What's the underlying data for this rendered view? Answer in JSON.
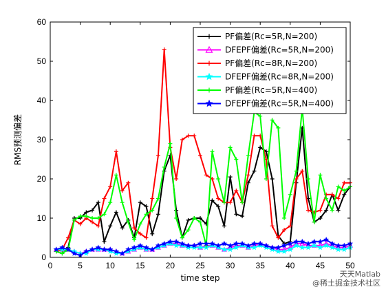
{
  "chart_data": {
    "type": "line",
    "xlabel": "time step",
    "ylabel": "RMS预测偏差",
    "xlim": [
      0,
      50
    ],
    "ylim": [
      0,
      60
    ],
    "xticks": [
      0,
      5,
      10,
      15,
      20,
      25,
      30,
      35,
      40,
      45,
      50
    ],
    "yticks": [
      0,
      10,
      20,
      30,
      40,
      50,
      60
    ],
    "grid": false,
    "legend_position": "top-right",
    "x": [
      1,
      2,
      3,
      4,
      5,
      6,
      7,
      8,
      9,
      10,
      11,
      12,
      13,
      14,
      15,
      16,
      17,
      18,
      19,
      20,
      21,
      22,
      23,
      24,
      25,
      26,
      27,
      28,
      29,
      30,
      31,
      32,
      33,
      34,
      35,
      36,
      37,
      38,
      39,
      40,
      41,
      42,
      43,
      44,
      45,
      46,
      47,
      48,
      49,
      50
    ],
    "series": [
      {
        "name": "PF偏差(Rc=5R,N=200)",
        "color": "#000000",
        "marker": "plus",
        "values": [
          1.5,
          1,
          2.5,
          10,
          10,
          11.5,
          12,
          14,
          4,
          8,
          11.5,
          7.5,
          9.5,
          5,
          14,
          13,
          6,
          11,
          22,
          26,
          12,
          5,
          9.5,
          10,
          10,
          8.5,
          14.5,
          13,
          8,
          20.5,
          11,
          10.5,
          19,
          22,
          28,
          27,
          20,
          5.5,
          3.5,
          4,
          19,
          33,
          15,
          9,
          10,
          12,
          16,
          12,
          16,
          18
        ]
      },
      {
        "name": "DFEPF偏差(Rc=5R,N=200)",
        "color": "#ff00ff",
        "marker": "triangle",
        "values": [
          2,
          2,
          2,
          1.5,
          1,
          1.5,
          2,
          2,
          2,
          2,
          1.5,
          1,
          1.5,
          2,
          2.5,
          2,
          2,
          2.5,
          3,
          3.5,
          3.5,
          3,
          3,
          3,
          2.5,
          3,
          3,
          2.5,
          2,
          2.5,
          3,
          3,
          2.5,
          3,
          3.5,
          3,
          2.5,
          2,
          2,
          2.5,
          3.5,
          3.5,
          3,
          3,
          3,
          3.5,
          3,
          2.5,
          2.5,
          3
        ]
      },
      {
        "name": "PF偏差(Rc=8R,N=200)",
        "color": "#ff0000",
        "marker": "plus",
        "values": [
          1.5,
          2,
          5,
          9.5,
          8.5,
          10,
          9,
          8,
          15,
          18,
          27,
          17,
          19,
          7.5,
          6,
          5,
          15,
          26,
          53,
          28,
          20,
          30,
          31,
          31,
          26,
          21,
          20,
          15,
          14,
          14,
          17,
          14,
          21,
          31,
          31,
          25,
          8,
          5,
          7,
          8,
          20,
          22,
          12,
          11.5,
          12,
          16,
          16,
          15,
          19,
          19
        ]
      },
      {
        "name": "DFEPF偏差(Rc=8R,N=200)",
        "color": "#00ffff",
        "marker": "star",
        "values": [
          2,
          2,
          2,
          1.5,
          1,
          1,
          2,
          2,
          2,
          1.5,
          1,
          1,
          1.5,
          2,
          2.5,
          2,
          2,
          2.5,
          3,
          3.5,
          3,
          3,
          2.5,
          2.5,
          2.5,
          2.5,
          3,
          2.5,
          2,
          2,
          2.5,
          3,
          2.5,
          2.5,
          3,
          2.5,
          2,
          1.5,
          1.5,
          2,
          3,
          2.5,
          2.5,
          3,
          2.5,
          3,
          2.5,
          2,
          2,
          2.5
        ]
      },
      {
        "name": "PF偏差(Rc=5R,N=400)",
        "color": "#00ff00",
        "marker": "plus",
        "values": [
          1.5,
          1,
          2,
          9.5,
          10.5,
          10.5,
          10,
          10,
          11,
          14,
          21,
          14,
          9,
          4.5,
          8.5,
          11,
          12,
          15,
          23,
          29,
          10,
          5,
          7,
          10,
          9,
          3,
          27,
          20,
          14,
          28,
          25,
          14,
          26,
          37,
          36,
          20,
          35,
          33,
          10,
          16,
          22,
          38,
          20,
          9,
          21,
          15,
          12,
          18,
          17,
          18
        ]
      },
      {
        "name": "DFEPF偏差(Rc=5R,N=400)",
        "color": "#0000ff",
        "marker": "star",
        "values": [
          2,
          2.5,
          2,
          1,
          0.5,
          1.5,
          2,
          2.5,
          2,
          2,
          1.5,
          1,
          2,
          2.5,
          3,
          2.5,
          2,
          3,
          3.5,
          4,
          4,
          3.5,
          3,
          3,
          3.5,
          3.5,
          3.5,
          3,
          3.5,
          3,
          3.5,
          3.5,
          3,
          3.5,
          3.5,
          3,
          2.5,
          2.5,
          3,
          3.5,
          4,
          4,
          3.5,
          4,
          4,
          4.5,
          3.5,
          3,
          3,
          3.5
        ]
      }
    ]
  },
  "watermark": {
    "line1": "天天Matlab",
    "line2": "@稀土掘金技术社区"
  }
}
